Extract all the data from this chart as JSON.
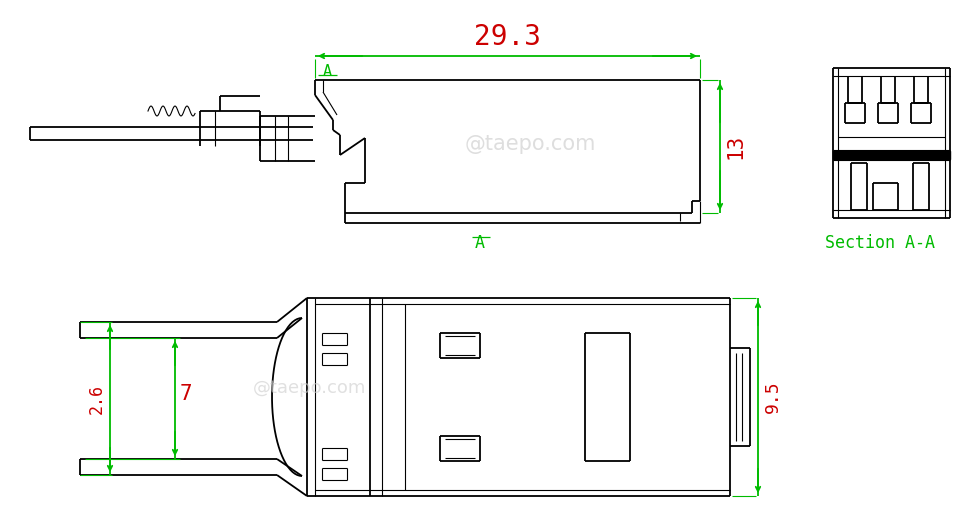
{
  "bg_color": "#ffffff",
  "line_color": "#000000",
  "green_color": "#00bb00",
  "red_color": "#cc0000",
  "watermark_color": "#d0d0d0",
  "watermark_text1": "@taepo.com",
  "watermark_text2": "@taepo.com",
  "dim_29_3": "29.3",
  "dim_13": "13",
  "dim_7": "7",
  "dim_26": "2.6",
  "dim_9_5": "9.5",
  "label_A": "A",
  "label_section": "Section A-A",
  "lw": 1.3,
  "lw_t": 0.8
}
